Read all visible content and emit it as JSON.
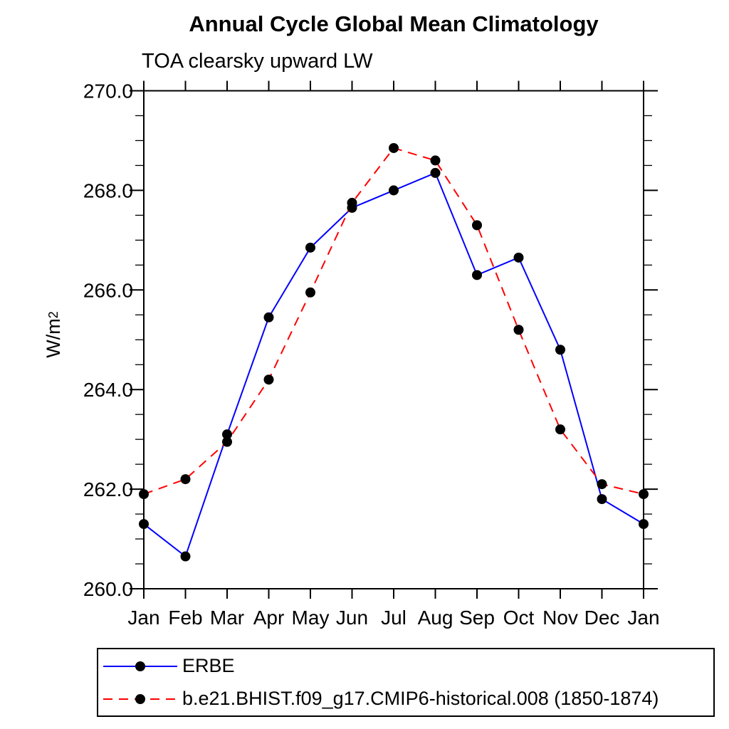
{
  "chart_data": {
    "type": "line",
    "title": "Annual Cycle Global Mean Climatology",
    "subtitle": "TOA clearsky upward LW",
    "ylabel_base": "W/m",
    "ylabel_exp": "2",
    "xlabel": "",
    "x_categories": [
      "Jan",
      "Feb",
      "Mar",
      "Apr",
      "May",
      "Jun",
      "Jul",
      "Aug",
      "Sep",
      "Oct",
      "Nov",
      "Dec",
      "Jan"
    ],
    "ylim": [
      260.0,
      270.0
    ],
    "y_major_step": 2.0,
    "y_minor_step": 0.5,
    "y_major_tick_labels": [
      "260.0",
      "262.0",
      "264.0",
      "266.0",
      "268.0",
      "270.0"
    ],
    "grid": false,
    "legend_position": "bottom-left-box",
    "axis_color": "#000000",
    "marker_radius": 7,
    "series": [
      {
        "name": "ERBE",
        "line_color": "#0000ff",
        "line_style": "solid",
        "marker": "circle",
        "marker_color": "#000000",
        "values": [
          261.3,
          260.65,
          263.1,
          265.45,
          266.85,
          267.65,
          268.0,
          268.35,
          266.3,
          266.65,
          264.8,
          261.8,
          261.3
        ]
      },
      {
        "name": "b.e21.BHIST.f09_g17.CMIP6-historical.008 (1850-1874)",
        "line_color": "#ff0000",
        "line_style": "dashed",
        "marker": "circle",
        "marker_color": "#000000",
        "values": [
          261.9,
          262.2,
          262.95,
          264.2,
          265.95,
          267.75,
          268.85,
          268.6,
          267.3,
          265.2,
          263.2,
          262.1,
          261.9
        ]
      }
    ]
  }
}
